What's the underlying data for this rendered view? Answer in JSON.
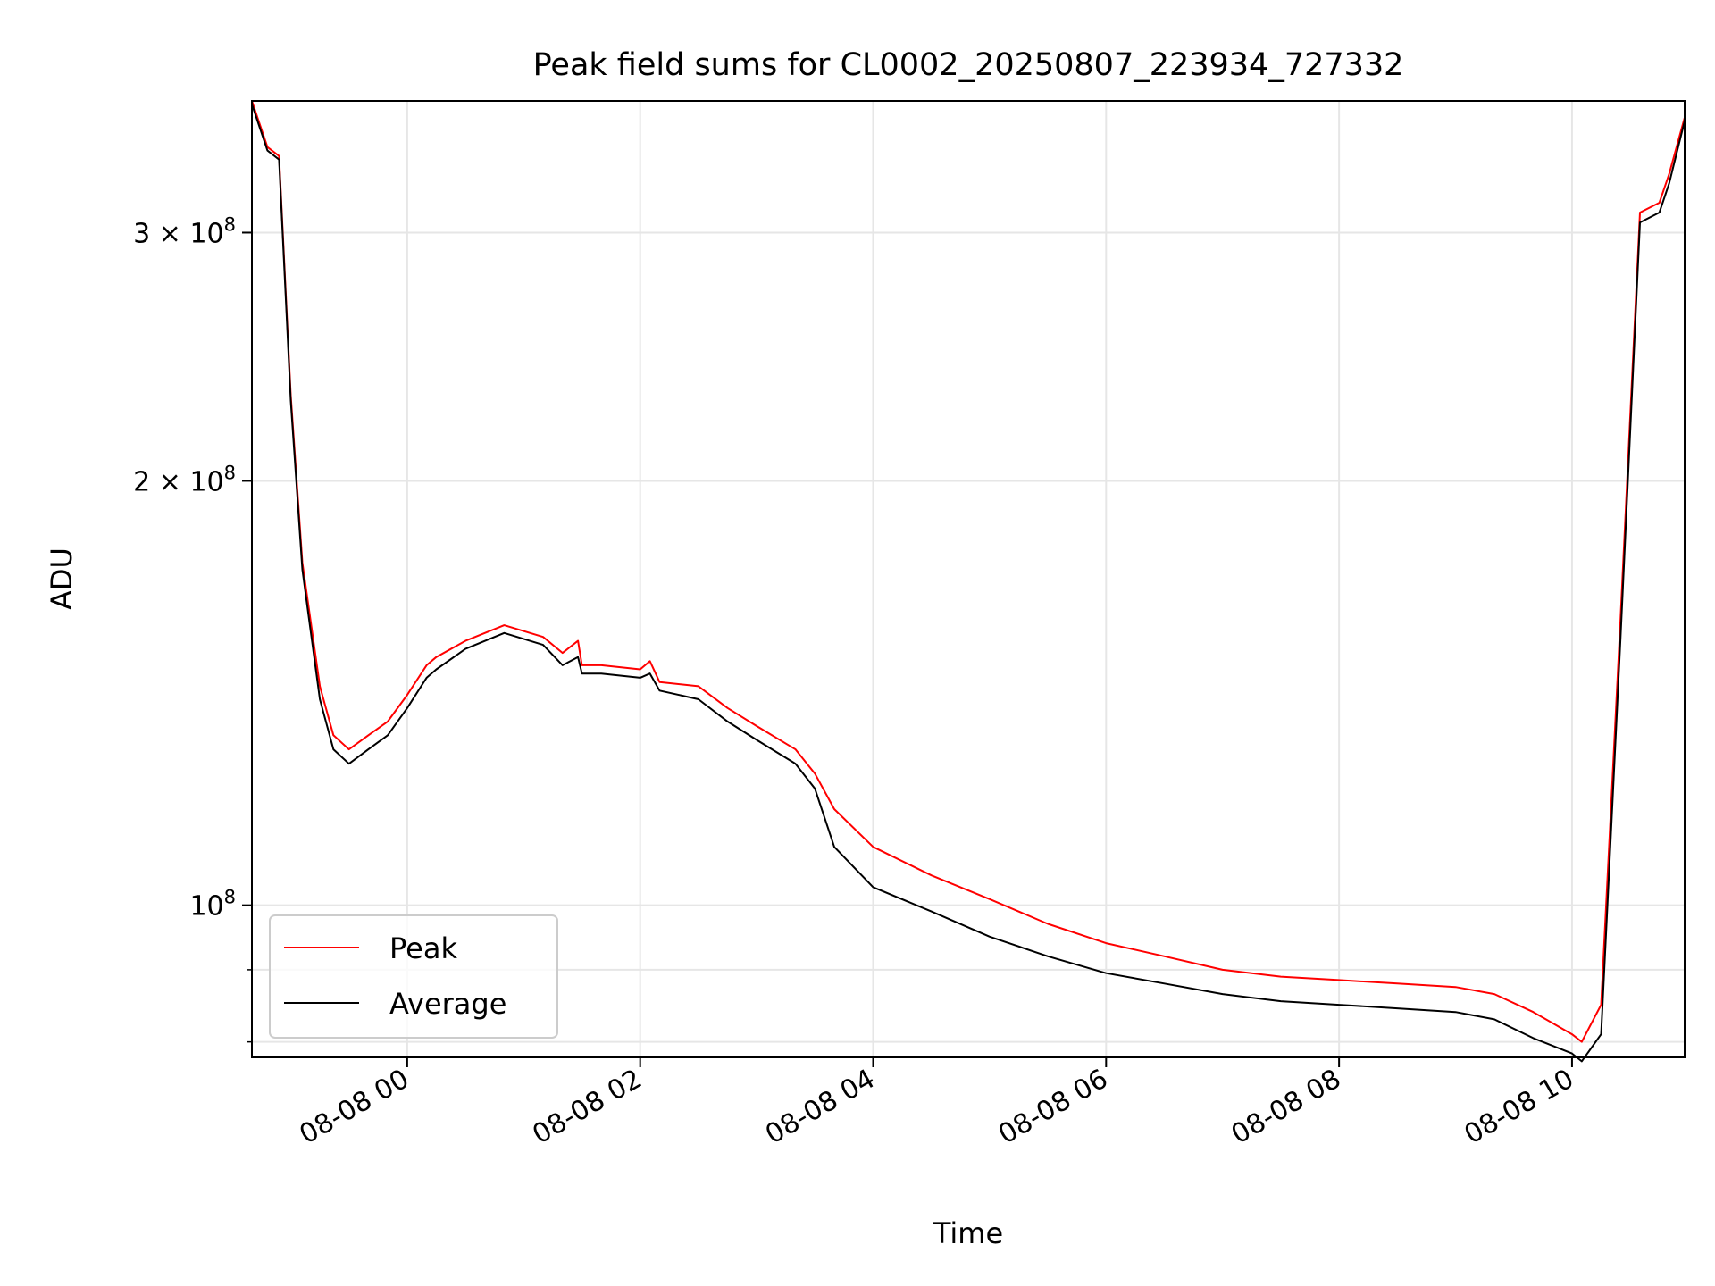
{
  "chart_data": {
    "type": "line",
    "title": "Peak field sums for CL0002_20250807_223934_727332",
    "xlabel": "Time",
    "ylabel": "ADU",
    "y_scale": "log",
    "grid": true,
    "legend_position": "lower-left",
    "xlim": [
      "2025-08-07 22:40",
      "2025-08-08 10:58"
    ],
    "ylim": [
      78000000,
      372000000
    ],
    "x_ticks": [
      {
        "value": "2025-08-08 00:00",
        "label": "08-08 00"
      },
      {
        "value": "2025-08-08 02:00",
        "label": "08-08 02"
      },
      {
        "value": "2025-08-08 04:00",
        "label": "08-08 04"
      },
      {
        "value": "2025-08-08 06:00",
        "label": "08-08 06"
      },
      {
        "value": "2025-08-08 08:00",
        "label": "08-08 08"
      },
      {
        "value": "2025-08-08 10:00",
        "label": "08-08 10"
      }
    ],
    "y_ticks": [
      {
        "value": 100000000,
        "mantissa": "",
        "base": "10",
        "exponent": "8"
      },
      {
        "value": 200000000,
        "mantissa": "2",
        "base": "10",
        "exponent": "8"
      },
      {
        "value": 300000000,
        "mantissa": "3",
        "base": "10",
        "exponent": "8"
      }
    ],
    "y_minor_ticks": [
      80000000,
      90000000
    ],
    "x": [
      "2025-08-07 22:40",
      "2025-08-07 22:48",
      "2025-08-07 22:54",
      "2025-08-07 23:00",
      "2025-08-07 23:06",
      "2025-08-07 23:15",
      "2025-08-07 23:22",
      "2025-08-07 23:30",
      "2025-08-07 23:40",
      "2025-08-07 23:50",
      "2025-08-08 00:00",
      "2025-08-08 00:10",
      "2025-08-08 00:15",
      "2025-08-08 00:30",
      "2025-08-08 00:50",
      "2025-08-08 01:10",
      "2025-08-08 01:20",
      "2025-08-08 01:28",
      "2025-08-08 01:30",
      "2025-08-08 01:40",
      "2025-08-08 02:00",
      "2025-08-08 02:05",
      "2025-08-08 02:10",
      "2025-08-08 02:30",
      "2025-08-08 02:45",
      "2025-08-08 03:00",
      "2025-08-08 03:20",
      "2025-08-08 03:30",
      "2025-08-08 03:40",
      "2025-08-08 04:00",
      "2025-08-08 04:30",
      "2025-08-08 05:00",
      "2025-08-08 05:30",
      "2025-08-08 06:00",
      "2025-08-08 06:30",
      "2025-08-08 07:00",
      "2025-08-08 07:30",
      "2025-08-08 08:00",
      "2025-08-08 08:30",
      "2025-08-08 09:00",
      "2025-08-08 09:20",
      "2025-08-08 09:40",
      "2025-08-08 10:00",
      "2025-08-08 10:05",
      "2025-08-08 10:15",
      "2025-08-08 10:25",
      "2025-08-08 10:35",
      "2025-08-08 10:45",
      "2025-08-08 10:50",
      "2025-08-08 10:58"
    ],
    "series": [
      {
        "name": "Peak",
        "color": "#ff0000",
        "values": [
          372000000,
          345000000,
          340000000,
          230000000,
          175000000,
          143000000,
          132000000,
          129000000,
          132000000,
          135000000,
          141000000,
          148000000,
          150000000,
          154000000,
          158000000,
          155000000,
          151000000,
          154000000,
          148000000,
          148000000,
          147000000,
          149000000,
          144000000,
          143000000,
          138000000,
          134000000,
          129000000,
          124000000,
          117000000,
          110000000,
          105000000,
          101000000,
          97000000,
          94000000,
          92000000,
          90000000,
          89000000,
          88500000,
          88000000,
          87500000,
          86500000,
          84000000,
          81000000,
          80000000,
          85000000,
          160000000,
          310000000,
          315000000,
          330000000,
          362000000
        ]
      },
      {
        "name": "Average",
        "color": "#000000",
        "values": [
          370000000,
          343000000,
          338000000,
          228000000,
          173000000,
          140000000,
          129000000,
          126000000,
          129000000,
          132000000,
          138000000,
          145000000,
          147000000,
          152000000,
          156000000,
          153000000,
          148000000,
          150000000,
          146000000,
          146000000,
          145000000,
          146000000,
          142000000,
          140000000,
          135000000,
          131000000,
          126000000,
          121000000,
          110000000,
          103000000,
          99000000,
          95000000,
          92000000,
          89500000,
          88000000,
          86500000,
          85500000,
          85000000,
          84500000,
          84000000,
          83000000,
          80500000,
          78500000,
          77500000,
          81000000,
          155000000,
          305000000,
          310000000,
          325000000,
          360000000
        ]
      }
    ]
  }
}
